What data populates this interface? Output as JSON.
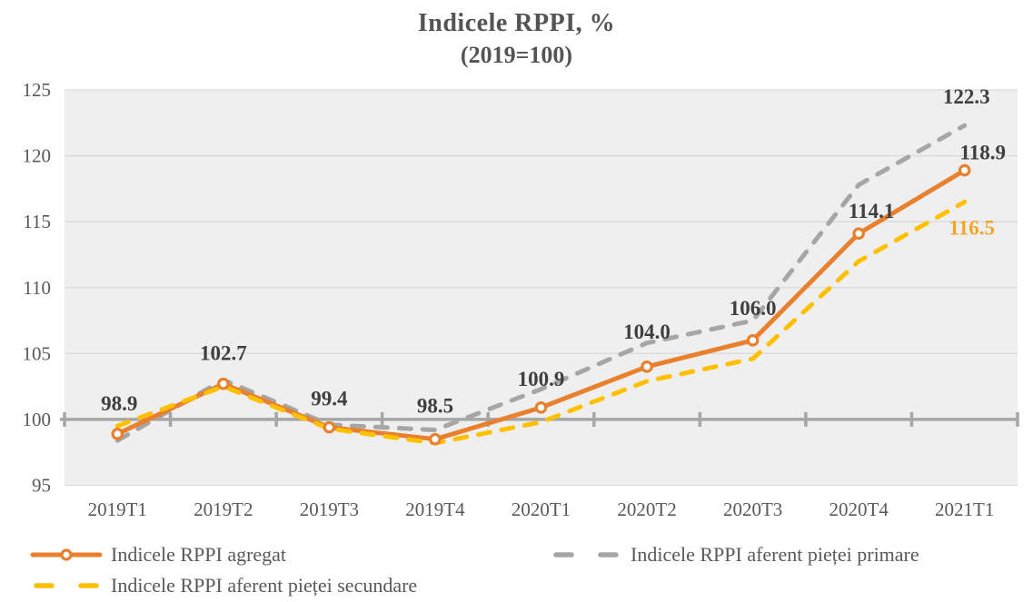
{
  "title": {
    "line1": "Indicele RPPI, %",
    "line2": "(2019=100)"
  },
  "colors": {
    "aggregate_orange": "#E8802E",
    "primary_gray": "#A6A6A6",
    "secondary_yellow": "#FFC000",
    "data_label_dark": "#3F3F3F",
    "secondary_label_gold": "#F0A62A",
    "axis_text": "#595959",
    "title_text": "#545454",
    "plot_bg": "#EFEFEF",
    "gridline": "#DADADA",
    "axis_line": "#A6A6A6"
  },
  "chart_data": {
    "type": "line",
    "title": "Indicele RPPI, %",
    "subtitle": "(2019=100)",
    "categories": [
      "2019T1",
      "2019T2",
      "2019T3",
      "2019T4",
      "2020T1",
      "2020T2",
      "2020T3",
      "2020T4",
      "2021T1"
    ],
    "ylim": [
      95,
      125
    ],
    "yticks": [
      95,
      100,
      105,
      110,
      115,
      120,
      125
    ],
    "baseline_axis": 100,
    "grid": true,
    "legend_position": "bottom",
    "series": [
      {
        "name": "Indicele RPPI agregat",
        "color": "#E8802E",
        "line_style": "solid",
        "marker": "circle-open",
        "values": [
          98.9,
          102.7,
          99.4,
          98.5,
          100.9,
          104.0,
          106.0,
          114.1,
          118.9
        ],
        "point_labels": [
          "98.9",
          "102.7",
          "99.4",
          "98.5",
          "100.9",
          "104.0",
          "106.0",
          "114.1",
          "118.9"
        ],
        "label_color": "#3F3F3F"
      },
      {
        "name": "Indicele RPPI aferent pieței primare",
        "color": "#A6A6A6",
        "line_style": "dashed",
        "marker": "none",
        "values": [
          98.4,
          103.0,
          99.6,
          99.2,
          102.3,
          105.8,
          107.5,
          117.8,
          122.3
        ],
        "point_labels": [
          null,
          null,
          null,
          null,
          null,
          null,
          null,
          null,
          "122.3"
        ],
        "label_color": "#3F3F3F"
      },
      {
        "name": "Indicele RPPI aferent pieței secundare",
        "color": "#FFC000",
        "line_style": "dashed",
        "marker": "none",
        "values": [
          99.5,
          102.5,
          99.3,
          98.2,
          99.8,
          102.9,
          104.6,
          112.0,
          116.5
        ],
        "point_labels": [
          null,
          null,
          null,
          null,
          null,
          null,
          null,
          null,
          "116.5"
        ],
        "label_color": "#F0A62A"
      }
    ]
  },
  "legend": {
    "left_column": [
      {
        "label": "Indicele RPPI agregat"
      },
      {
        "label": "Indicele RPPI aferent pieței secundare"
      }
    ],
    "right_column": [
      {
        "label": "Indicele RPPI aferent pieței primare"
      }
    ]
  }
}
